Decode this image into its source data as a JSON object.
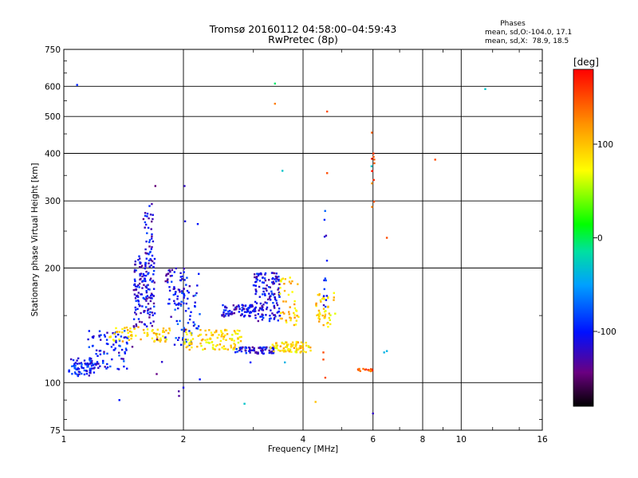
{
  "chart_data": {
    "type": "scatter",
    "title": "Tromsø 20160112 04:58:00–04:59:43",
    "subtitle": "RwPretec (8p)",
    "xlabel": "Frequency [MHz]",
    "ylabel": "Stationary phase Virtual Height [km]",
    "x_scale": "log",
    "y_scale": "log",
    "xlim": [
      1,
      16
    ],
    "ylim": [
      75,
      750
    ],
    "x_ticks": [
      1,
      2,
      4,
      6,
      8,
      10,
      16
    ],
    "y_ticks": [
      75,
      100,
      200,
      300,
      400,
      500,
      600,
      750
    ],
    "grid": true,
    "stats": {
      "heading": "Phases",
      "line_o": "mean, sd,O:-104.0, 17.1",
      "line_x": "mean, sd,X:  78.9, 18.5"
    },
    "colorbar": {
      "label": "[deg]",
      "range": [
        -180,
        180
      ],
      "ticks": [
        100,
        0,
        -100
      ]
    },
    "clusters": [
      {
        "x": [
          1.03,
          1.2
        ],
        "y": [
          104,
          116
        ],
        "phase": -100,
        "n": 70
      },
      {
        "x": [
          1.15,
          1.45
        ],
        "y": [
          108,
          138
        ],
        "phase": -100,
        "n": 90
      },
      {
        "x": [
          1.3,
          1.85
        ],
        "y": [
          128,
          140
        ],
        "phase": 90,
        "n": 70
      },
      {
        "x": [
          1.5,
          1.7
        ],
        "y": [
          140,
          215
        ],
        "phase": -110,
        "n": 150
      },
      {
        "x": [
          1.6,
          1.68
        ],
        "y": [
          215,
          300
        ],
        "phase": -110,
        "n": 35
      },
      {
        "x": [
          1.8,
          2.05
        ],
        "y": [
          160,
          200
        ],
        "phase": -110,
        "n": 55
      },
      {
        "x": [
          1.9,
          2.2
        ],
        "y": [
          125,
          175
        ],
        "phase": -90,
        "n": 55
      },
      {
        "x": [
          2.0,
          2.8
        ],
        "y": [
          122,
          138
        ],
        "phase": 90,
        "n": 110
      },
      {
        "x": [
          2.5,
          3.1
        ],
        "y": [
          149,
          160
        ],
        "phase": -110,
        "n": 80
      },
      {
        "x": [
          3.0,
          3.5
        ],
        "y": [
          145,
          195
        ],
        "phase": -110,
        "n": 140
      },
      {
        "x": [
          2.7,
          3.4
        ],
        "y": [
          119,
          124
        ],
        "phase": -110,
        "n": 70
      },
      {
        "x": [
          3.3,
          4.2
        ],
        "y": [
          120,
          128
        ],
        "phase": 90,
        "n": 80
      },
      {
        "x": [
          3.5,
          3.9
        ],
        "y": [
          140,
          190
        ],
        "phase": 95,
        "n": 45
      },
      {
        "x": [
          4.3,
          4.85
        ],
        "y": [
          140,
          172
        ],
        "phase": 90,
        "n": 45
      },
      {
        "x": [
          5.5,
          6.0
        ],
        "y": [
          107,
          109
        ],
        "phase": 145,
        "n": 18
      },
      {
        "x": [
          4.5,
          4.6
        ],
        "y": [
          155,
          300
        ],
        "phase": -100,
        "n": 14
      },
      {
        "x": [
          5.95,
          6.05
        ],
        "y": [
          260,
          460
        ],
        "phase": 140,
        "n": 12
      },
      {
        "x": [
          1.4,
          2.2
        ],
        "y": [
          92,
          330
        ],
        "phase": -120,
        "n": 20
      }
    ],
    "outliers": [
      {
        "x": 1.08,
        "y": 605,
        "phase": -95
      },
      {
        "x": 3.4,
        "y": 610,
        "phase": -5
      },
      {
        "x": 3.4,
        "y": 540,
        "phase": 130
      },
      {
        "x": 3.55,
        "y": 360,
        "phase": -30
      },
      {
        "x": 4.6,
        "y": 515,
        "phase": 150
      },
      {
        "x": 4.6,
        "y": 355,
        "phase": 150
      },
      {
        "x": 5.95,
        "y": 370,
        "phase": -30
      },
      {
        "x": 6.5,
        "y": 240,
        "phase": 150
      },
      {
        "x": 6.4,
        "y": 120,
        "phase": -40
      },
      {
        "x": 6.5,
        "y": 121,
        "phase": -40
      },
      {
        "x": 8.6,
        "y": 385,
        "phase": 150
      },
      {
        "x": 11.5,
        "y": 590,
        "phase": -30
      },
      {
        "x": 1.38,
        "y": 90,
        "phase": -100
      },
      {
        "x": 2.0,
        "y": 97,
        "phase": -110
      },
      {
        "x": 2.85,
        "y": 88,
        "phase": -30
      },
      {
        "x": 4.3,
        "y": 89,
        "phase": 100
      },
      {
        "x": 6.0,
        "y": 83,
        "phase": -120
      },
      {
        "x": 2.2,
        "y": 102,
        "phase": -100
      },
      {
        "x": 4.5,
        "y": 120,
        "phase": 150
      },
      {
        "x": 4.5,
        "y": 115,
        "phase": 150
      },
      {
        "x": 4.55,
        "y": 103,
        "phase": 150
      },
      {
        "x": 3.6,
        "y": 113,
        "phase": -40
      },
      {
        "x": 2.95,
        "y": 113,
        "phase": -100
      }
    ]
  }
}
